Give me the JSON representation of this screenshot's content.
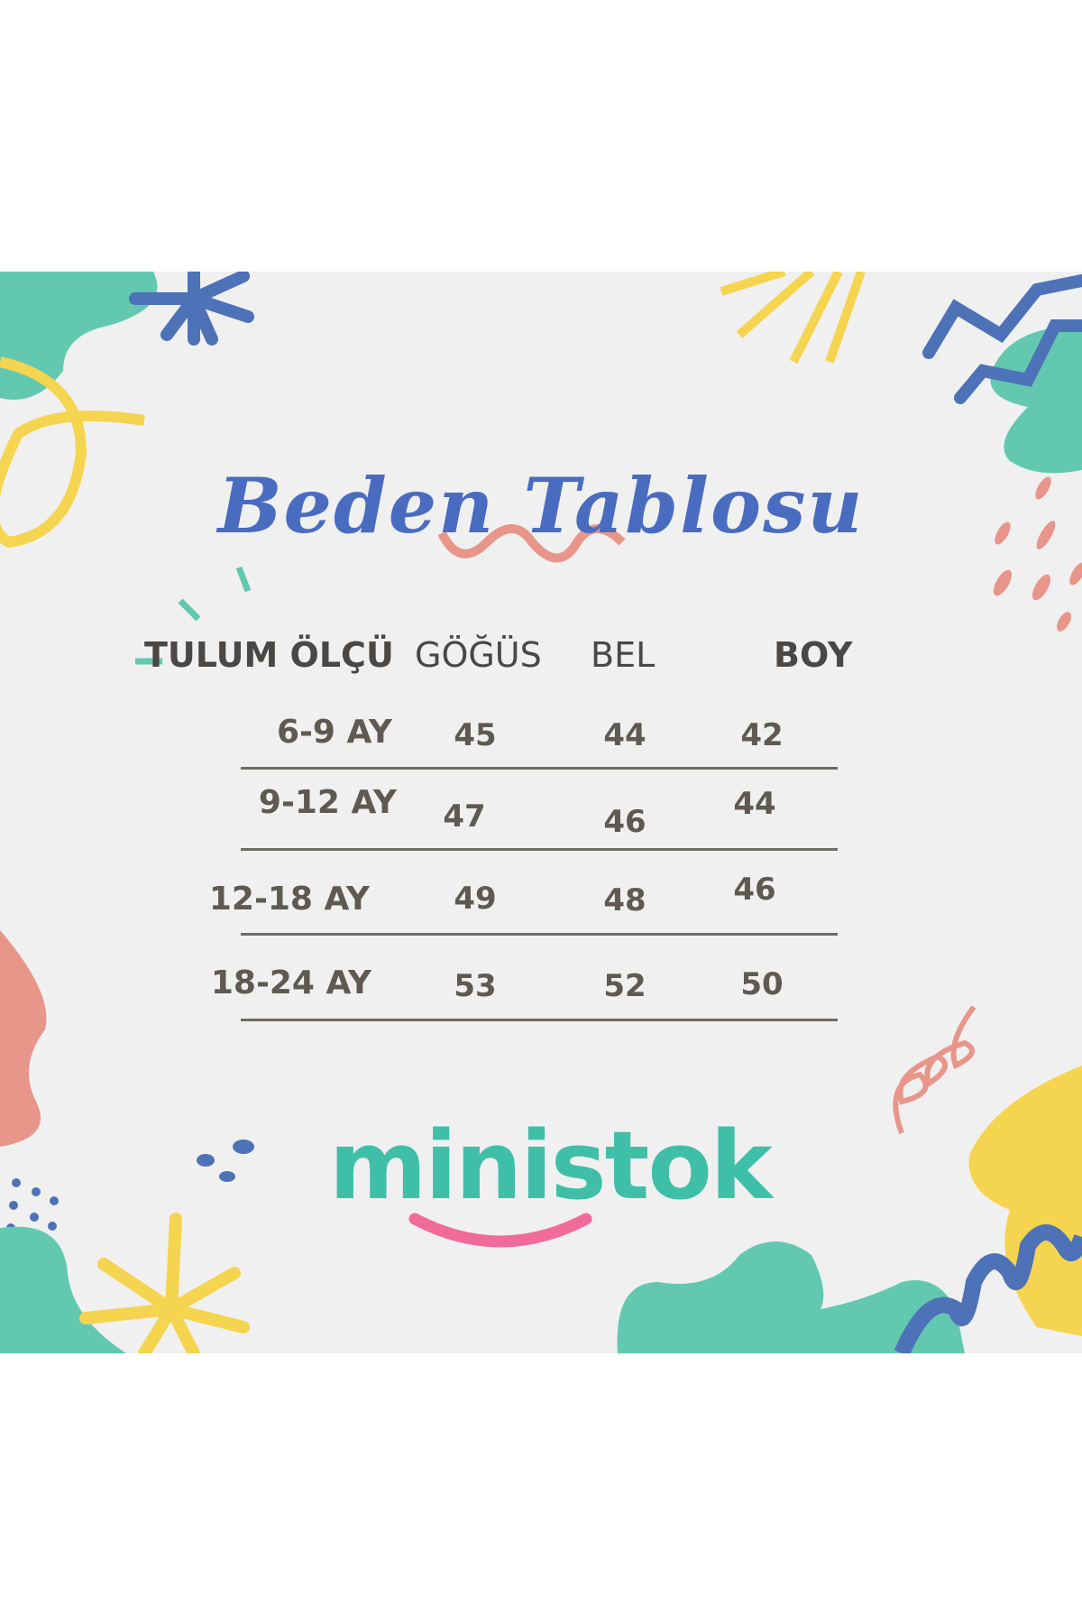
{
  "title": "Beden Tablosu",
  "table": {
    "headers": [
      "TULUM ÖLÇÜ",
      "GÖĞÜS",
      "BEL",
      "BOY"
    ],
    "rows": [
      {
        "size": "6-9 AY",
        "gogus": "45",
        "bel": "44",
        "boy": "42"
      },
      {
        "size": "9-12 AY",
        "gogus": "47",
        "bel": "46",
        "boy": "44"
      },
      {
        "size": "12-18 AY",
        "gogus": "49",
        "bel": "48",
        "boy": "46"
      },
      {
        "size": "18-24 AY",
        "gogus": "53",
        "bel": "52",
        "boy": "50"
      }
    ]
  },
  "brand": {
    "logo_text": "ministok",
    "logo_color": "#3fbfa8",
    "smile_color": "#f06b9a"
  },
  "colors": {
    "background": "#f0f0f0",
    "title": "#4a6cc0",
    "text": "#5e5a52",
    "teal": "#62c9b0",
    "blue": "#4e72b8",
    "yellow": "#f5d44f",
    "pink": "#e8958a"
  }
}
